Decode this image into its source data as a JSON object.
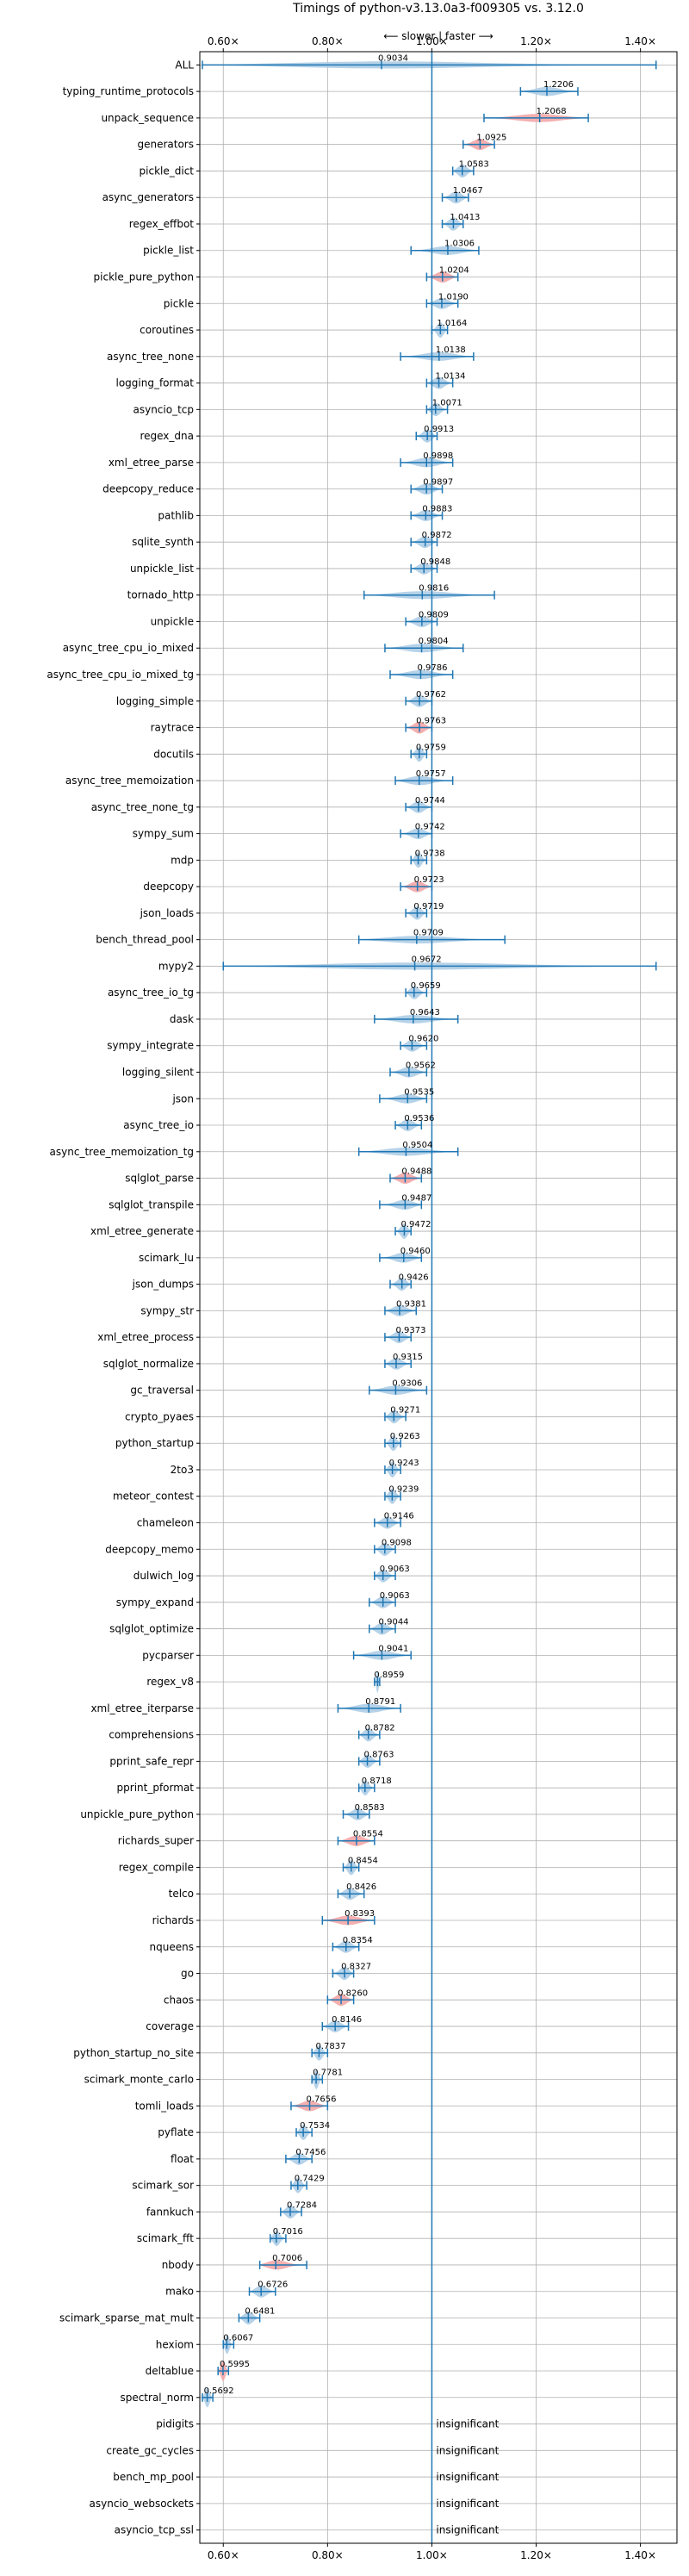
{
  "chart_data": {
    "type": "violin",
    "title": "Timings of python-v3.13.0a3-f009305 vs. 3.12.0",
    "direction_label": "⟵ slower | faster ⟶",
    "x_ticks": [
      0.6,
      0.8,
      1.0,
      1.2,
      1.4
    ],
    "x_tick_labels": [
      "0.60×",
      "0.80×",
      "1.00×",
      "1.20×",
      "1.40×"
    ],
    "xlim": [
      0.555,
      1.47
    ],
    "reference_line": 1.0,
    "grid": true,
    "colors": {
      "default": "#aecde6",
      "highlight": "#f4a6a6",
      "line": "#1f77b4",
      "grid": "#b0b0b0"
    },
    "insignificant_label": "insignificant",
    "benchmarks": [
      {
        "name": "ALL",
        "value": 0.9034,
        "label": "0.9034",
        "min": 0.56,
        "max": 1.43
      },
      {
        "name": "typing_runtime_protocols",
        "value": 1.2206,
        "label": "1.2206",
        "min": 1.17,
        "max": 1.28
      },
      {
        "name": "unpack_sequence",
        "value": 1.2068,
        "label": "1.2068",
        "min": 1.1,
        "max": 1.3,
        "highlight": true
      },
      {
        "name": "generators",
        "value": 1.0925,
        "label": "1.0925",
        "min": 1.06,
        "max": 1.12,
        "highlight": true
      },
      {
        "name": "pickle_dict",
        "value": 1.0583,
        "label": "1.0583",
        "min": 1.04,
        "max": 1.08
      },
      {
        "name": "async_generators",
        "value": 1.0467,
        "label": "1.0467",
        "min": 1.02,
        "max": 1.07
      },
      {
        "name": "regex_effbot",
        "value": 1.0413,
        "label": "1.0413",
        "min": 1.02,
        "max": 1.06
      },
      {
        "name": "pickle_list",
        "value": 1.0306,
        "label": "1.0306",
        "min": 0.96,
        "max": 1.09
      },
      {
        "name": "pickle_pure_python",
        "value": 1.0204,
        "label": "1.0204",
        "min": 0.99,
        "max": 1.05,
        "highlight": true
      },
      {
        "name": "pickle",
        "value": 1.019,
        "label": "1.0190",
        "min": 0.99,
        "max": 1.05
      },
      {
        "name": "coroutines",
        "value": 1.0164,
        "label": "1.0164",
        "min": 1.0,
        "max": 1.03
      },
      {
        "name": "async_tree_none",
        "value": 1.0138,
        "label": "1.0138",
        "min": 0.94,
        "max": 1.08
      },
      {
        "name": "logging_format",
        "value": 1.0134,
        "label": "1.0134",
        "min": 0.99,
        "max": 1.04
      },
      {
        "name": "asyncio_tcp",
        "value": 1.0071,
        "label": "1.0071",
        "min": 0.99,
        "max": 1.03
      },
      {
        "name": "regex_dna",
        "value": 0.9913,
        "label": "0.9913",
        "min": 0.97,
        "max": 1.01
      },
      {
        "name": "xml_etree_parse",
        "value": 0.9898,
        "label": "0.9898",
        "min": 0.94,
        "max": 1.04
      },
      {
        "name": "deepcopy_reduce",
        "value": 0.9897,
        "label": "0.9897",
        "min": 0.96,
        "max": 1.02
      },
      {
        "name": "pathlib",
        "value": 0.9883,
        "label": "0.9883",
        "min": 0.96,
        "max": 1.02
      },
      {
        "name": "sqlite_synth",
        "value": 0.9872,
        "label": "0.9872",
        "min": 0.96,
        "max": 1.01
      },
      {
        "name": "unpickle_list",
        "value": 0.9848,
        "label": "0.9848",
        "min": 0.96,
        "max": 1.01
      },
      {
        "name": "tornado_http",
        "value": 0.9816,
        "label": "0.9816",
        "min": 0.87,
        "max": 1.12
      },
      {
        "name": "unpickle",
        "value": 0.9809,
        "label": "0.9809",
        "min": 0.95,
        "max": 1.01
      },
      {
        "name": "async_tree_cpu_io_mixed",
        "value": 0.9804,
        "label": "0.9804",
        "min": 0.91,
        "max": 1.06
      },
      {
        "name": "async_tree_cpu_io_mixed_tg",
        "value": 0.9786,
        "label": "0.9786",
        "min": 0.92,
        "max": 1.04
      },
      {
        "name": "logging_simple",
        "value": 0.9762,
        "label": "0.9762",
        "min": 0.95,
        "max": 1.0
      },
      {
        "name": "raytrace",
        "value": 0.9763,
        "label": "0.9763",
        "min": 0.95,
        "max": 1.0,
        "highlight": true
      },
      {
        "name": "docutils",
        "value": 0.9759,
        "label": "0.9759",
        "min": 0.96,
        "max": 0.99
      },
      {
        "name": "async_tree_memoization",
        "value": 0.9757,
        "label": "0.9757",
        "min": 0.93,
        "max": 1.04
      },
      {
        "name": "async_tree_none_tg",
        "value": 0.9744,
        "label": "0.9744",
        "min": 0.95,
        "max": 1.0
      },
      {
        "name": "sympy_sum",
        "value": 0.9742,
        "label": "0.9742",
        "min": 0.94,
        "max": 1.0
      },
      {
        "name": "mdp",
        "value": 0.9738,
        "label": "0.9738",
        "min": 0.96,
        "max": 0.99
      },
      {
        "name": "deepcopy",
        "value": 0.9723,
        "label": "0.9723",
        "min": 0.94,
        "max": 1.0,
        "highlight": true
      },
      {
        "name": "json_loads",
        "value": 0.9719,
        "label": "0.9719",
        "min": 0.95,
        "max": 0.99
      },
      {
        "name": "bench_thread_pool",
        "value": 0.9709,
        "label": "0.9709",
        "min": 0.86,
        "max": 1.14
      },
      {
        "name": "mypy2",
        "value": 0.9672,
        "label": "0.9672",
        "min": 0.6,
        "max": 1.43
      },
      {
        "name": "async_tree_io_tg",
        "value": 0.9659,
        "label": "0.9659",
        "min": 0.95,
        "max": 0.99
      },
      {
        "name": "dask",
        "value": 0.9643,
        "label": "0.9643",
        "min": 0.89,
        "max": 1.05
      },
      {
        "name": "sympy_integrate",
        "value": 0.962,
        "label": "0.9620",
        "min": 0.94,
        "max": 0.99
      },
      {
        "name": "logging_silent",
        "value": 0.9562,
        "label": "0.9562",
        "min": 0.92,
        "max": 0.99
      },
      {
        "name": "json",
        "value": 0.9535,
        "label": "0.9535",
        "min": 0.9,
        "max": 0.99
      },
      {
        "name": "async_tree_io",
        "value": 0.9536,
        "label": "0.9536",
        "min": 0.93,
        "max": 0.98
      },
      {
        "name": "async_tree_memoization_tg",
        "value": 0.9504,
        "label": "0.9504",
        "min": 0.86,
        "max": 1.05
      },
      {
        "name": "sqlglot_parse",
        "value": 0.9488,
        "label": "0.9488",
        "min": 0.92,
        "max": 0.98,
        "highlight": true
      },
      {
        "name": "sqlglot_transpile",
        "value": 0.9487,
        "label": "0.9487",
        "min": 0.9,
        "max": 0.98
      },
      {
        "name": "xml_etree_generate",
        "value": 0.9472,
        "label": "0.9472",
        "min": 0.93,
        "max": 0.96
      },
      {
        "name": "scimark_lu",
        "value": 0.946,
        "label": "0.9460",
        "min": 0.9,
        "max": 0.98
      },
      {
        "name": "json_dumps",
        "value": 0.9426,
        "label": "0.9426",
        "min": 0.92,
        "max": 0.96
      },
      {
        "name": "sympy_str",
        "value": 0.9381,
        "label": "0.9381",
        "min": 0.91,
        "max": 0.97
      },
      {
        "name": "xml_etree_process",
        "value": 0.9373,
        "label": "0.9373",
        "min": 0.91,
        "max": 0.96
      },
      {
        "name": "sqlglot_normalize",
        "value": 0.9315,
        "label": "0.9315",
        "min": 0.91,
        "max": 0.96
      },
      {
        "name": "gc_traversal",
        "value": 0.9306,
        "label": "0.9306",
        "min": 0.88,
        "max": 0.99
      },
      {
        "name": "crypto_pyaes",
        "value": 0.9271,
        "label": "0.9271",
        "min": 0.91,
        "max": 0.95
      },
      {
        "name": "python_startup",
        "value": 0.9263,
        "label": "0.9263",
        "min": 0.91,
        "max": 0.94
      },
      {
        "name": "2to3",
        "value": 0.9243,
        "label": "0.9243",
        "min": 0.91,
        "max": 0.94
      },
      {
        "name": "meteor_contest",
        "value": 0.9239,
        "label": "0.9239",
        "min": 0.91,
        "max": 0.94
      },
      {
        "name": "chameleon",
        "value": 0.9146,
        "label": "0.9146",
        "min": 0.89,
        "max": 0.94
      },
      {
        "name": "deepcopy_memo",
        "value": 0.9098,
        "label": "0.9098",
        "min": 0.89,
        "max": 0.93
      },
      {
        "name": "dulwich_log",
        "value": 0.9063,
        "label": "0.9063",
        "min": 0.89,
        "max": 0.93
      },
      {
        "name": "sympy_expand",
        "value": 0.9063,
        "label": "0.9063",
        "min": 0.88,
        "max": 0.93
      },
      {
        "name": "sqlglot_optimize",
        "value": 0.9044,
        "label": "0.9044",
        "min": 0.88,
        "max": 0.93
      },
      {
        "name": "pycparser",
        "value": 0.9041,
        "label": "0.9041",
        "min": 0.85,
        "max": 0.96
      },
      {
        "name": "regex_v8",
        "value": 0.8959,
        "label": "0.8959",
        "min": 0.89,
        "max": 0.9
      },
      {
        "name": "xml_etree_iterparse",
        "value": 0.8791,
        "label": "0.8791",
        "min": 0.82,
        "max": 0.94
      },
      {
        "name": "comprehensions",
        "value": 0.8782,
        "label": "0.8782",
        "min": 0.86,
        "max": 0.9
      },
      {
        "name": "pprint_safe_repr",
        "value": 0.8763,
        "label": "0.8763",
        "min": 0.86,
        "max": 0.9
      },
      {
        "name": "pprint_pformat",
        "value": 0.8718,
        "label": "0.8718",
        "min": 0.86,
        "max": 0.89
      },
      {
        "name": "unpickle_pure_python",
        "value": 0.8583,
        "label": "0.8583",
        "min": 0.83,
        "max": 0.88
      },
      {
        "name": "richards_super",
        "value": 0.8554,
        "label": "0.8554",
        "min": 0.82,
        "max": 0.89,
        "highlight": true
      },
      {
        "name": "regex_compile",
        "value": 0.8454,
        "label": "0.8454",
        "min": 0.83,
        "max": 0.86
      },
      {
        "name": "telco",
        "value": 0.8426,
        "label": "0.8426",
        "min": 0.82,
        "max": 0.87
      },
      {
        "name": "richards",
        "value": 0.8393,
        "label": "0.8393",
        "min": 0.79,
        "max": 0.89,
        "highlight": true
      },
      {
        "name": "nqueens",
        "value": 0.8354,
        "label": "0.8354",
        "min": 0.81,
        "max": 0.86
      },
      {
        "name": "go",
        "value": 0.8327,
        "label": "0.8327",
        "min": 0.81,
        "max": 0.85
      },
      {
        "name": "chaos",
        "value": 0.826,
        "label": "0.8260",
        "min": 0.8,
        "max": 0.85,
        "highlight": true
      },
      {
        "name": "coverage",
        "value": 0.8146,
        "label": "0.8146",
        "min": 0.79,
        "max": 0.84
      },
      {
        "name": "python_startup_no_site",
        "value": 0.7837,
        "label": "0.7837",
        "min": 0.77,
        "max": 0.8
      },
      {
        "name": "scimark_monte_carlo",
        "value": 0.7781,
        "label": "0.7781",
        "min": 0.77,
        "max": 0.79
      },
      {
        "name": "tomli_loads",
        "value": 0.7656,
        "label": "0.7656",
        "min": 0.73,
        "max": 0.8,
        "highlight": true
      },
      {
        "name": "pyflate",
        "value": 0.7534,
        "label": "0.7534",
        "min": 0.74,
        "max": 0.77
      },
      {
        "name": "float",
        "value": 0.7456,
        "label": "0.7456",
        "min": 0.72,
        "max": 0.77
      },
      {
        "name": "scimark_sor",
        "value": 0.7429,
        "label": "0.7429",
        "min": 0.73,
        "max": 0.76
      },
      {
        "name": "fannkuch",
        "value": 0.7284,
        "label": "0.7284",
        "min": 0.71,
        "max": 0.75
      },
      {
        "name": "scimark_fft",
        "value": 0.7016,
        "label": "0.7016",
        "min": 0.69,
        "max": 0.72
      },
      {
        "name": "nbody",
        "value": 0.7006,
        "label": "0.7006",
        "min": 0.67,
        "max": 0.76,
        "highlight": true
      },
      {
        "name": "mako",
        "value": 0.6726,
        "label": "0.6726",
        "min": 0.65,
        "max": 0.7
      },
      {
        "name": "scimark_sparse_mat_mult",
        "value": 0.6481,
        "label": "0.6481",
        "min": 0.63,
        "max": 0.67
      },
      {
        "name": "hexiom",
        "value": 0.6067,
        "label": "0.6067",
        "min": 0.6,
        "max": 0.62
      },
      {
        "name": "deltablue",
        "value": 0.5995,
        "label": "0.5995",
        "min": 0.59,
        "max": 0.61,
        "highlight": true
      },
      {
        "name": "spectral_norm",
        "value": 0.5692,
        "label": "0.5692",
        "min": 0.56,
        "max": 0.58
      },
      {
        "name": "pidigits",
        "insignificant": true
      },
      {
        "name": "create_gc_cycles",
        "insignificant": true
      },
      {
        "name": "bench_mp_pool",
        "insignificant": true
      },
      {
        "name": "asyncio_websockets",
        "insignificant": true
      },
      {
        "name": "asyncio_tcp_ssl",
        "insignificant": true
      }
    ]
  }
}
